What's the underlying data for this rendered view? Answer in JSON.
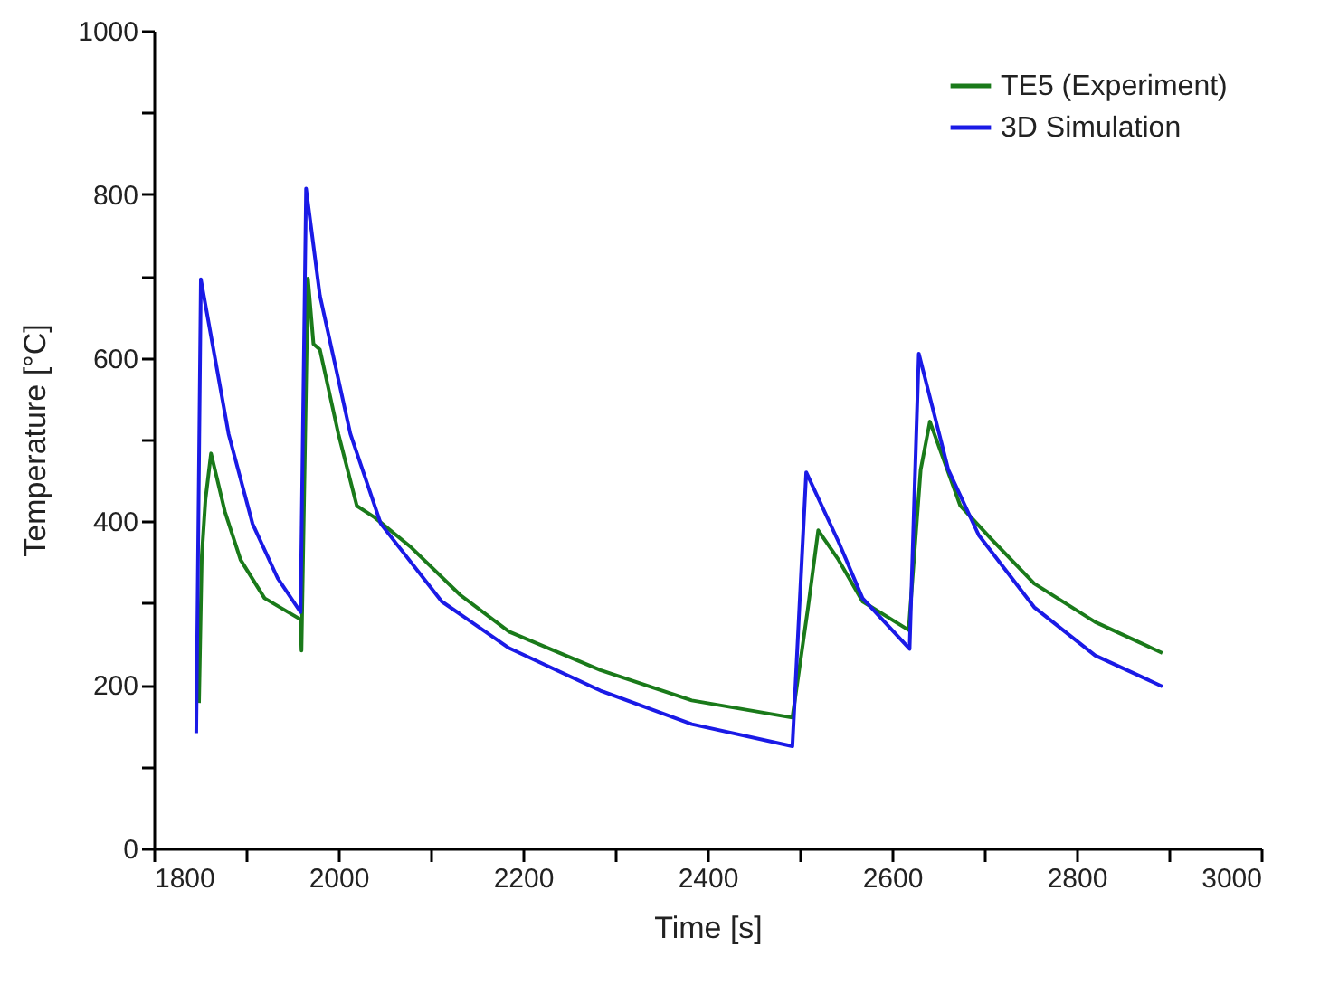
{
  "chart_data": {
    "type": "line",
    "xlabel": "Time [s]",
    "ylabel": "Temperature [°C]",
    "xlim": [
      1800,
      3000
    ],
    "ylim": [
      0,
      1000
    ],
    "xticks": [
      1800,
      {
        "value": 1900,
        "label": null
      },
      2000,
      {
        "value": 2100,
        "label": null
      },
      2200,
      {
        "value": 2300,
        "label": null
      },
      2400,
      {
        "value": 2500,
        "label": null
      },
      2600,
      {
        "value": 2700,
        "label": null
      },
      2800,
      {
        "value": 2900,
        "label": null
      },
      3000
    ],
    "yticks": [
      0,
      {
        "value": 100,
        "label": null
      },
      200,
      {
        "value": 300,
        "label": null
      },
      400,
      {
        "value": 500,
        "label": null
      },
      600,
      {
        "value": 700,
        "label": null
      },
      800,
      {
        "value": 900,
        "label": null
      },
      1000
    ],
    "grid": false,
    "legend": "top right",
    "marker": "none",
    "line_style": "solid",
    "series": [
      {
        "name": "TE5 (Experiment)",
        "color": "#1a7a1a",
        "x": [
          1849,
          1852,
          1856,
          1862,
          1877,
          1894,
          1920,
          1959,
          1960,
          1967,
          1973,
          1980,
          2000,
          2020,
          2039,
          2079,
          2132,
          2185,
          2284,
          2383,
          2492,
          2509,
          2520,
          2542,
          2568,
          2618,
          2631,
          2641,
          2674,
          2707,
          2754,
          2820,
          2893
        ],
        "values": [
          178,
          358,
          427,
          483,
          412,
          353,
          306,
          280,
          242,
          697,
          617,
          610,
          507,
          419,
          405,
          368,
          310,
          265,
          218,
          181,
          160,
          295,
          389,
          353,
          302,
          267,
          463,
          522,
          419,
          379,
          324,
          277,
          239
        ]
      },
      {
        "name": "3D Simulation",
        "color": "#1a1ae6",
        "x": [
          1846,
          1851,
          1881,
          1907,
          1934,
          1959,
          1965,
          1980,
          2013,
          2046,
          2112,
          2185,
          2284,
          2383,
          2492,
          2507,
          2542,
          2568,
          2619,
          2629,
          2661,
          2694,
          2754,
          2820,
          2893
        ],
        "values": [
          141,
          696,
          507,
          397,
          331,
          289,
          807,
          676,
          507,
          397,
          302,
          245,
          193,
          152,
          125,
          460,
          375,
          306,
          244,
          605,
          463,
          383,
          295,
          236,
          198
        ]
      }
    ]
  }
}
